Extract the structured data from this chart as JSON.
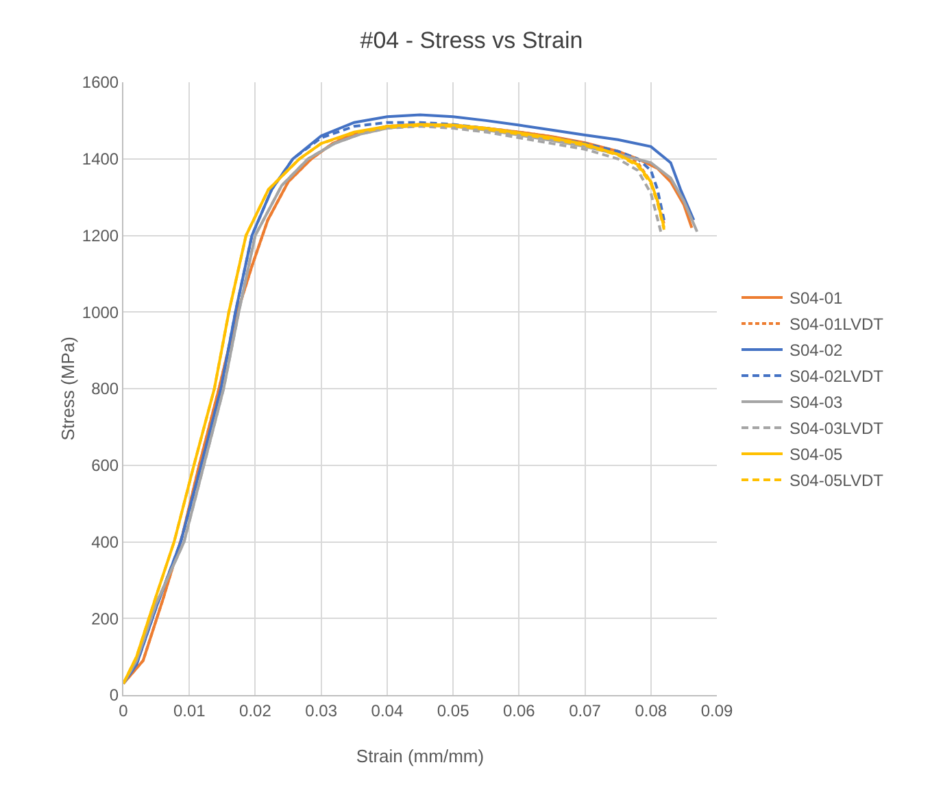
{
  "chart_data": {
    "type": "line",
    "title": "#04 - Stress vs Strain",
    "xlabel": "Strain (mm/mm)",
    "ylabel": "Stress (MPa)",
    "xlim": [
      0,
      0.09
    ],
    "xticks": [
      0,
      0.01,
      0.02,
      0.03,
      0.04,
      0.05,
      0.06,
      0.07,
      0.08,
      0.09
    ],
    "ylim": [
      0,
      1600
    ],
    "yticks": [
      0,
      200,
      400,
      600,
      800,
      1000,
      1200,
      1400,
      1600
    ],
    "grid": true,
    "legend": "right",
    "marker": "none",
    "series": [
      {
        "name": "S04-01",
        "color": "#ed7d31",
        "line_style": "solid",
        "x": [
          0,
          0.003,
          0.006,
          0.009,
          0.0115,
          0.0145,
          0.0173,
          0.0195,
          0.0219,
          0.025,
          0.0285,
          0.0317,
          0.035,
          0.04,
          0.045,
          0.05,
          0.055,
          0.06,
          0.065,
          0.07,
          0.075,
          0.078,
          0.081,
          0.083,
          0.085,
          0.0862
        ],
        "values": [
          30,
          90,
          250,
          420,
          600,
          800,
          1000,
          1120,
          1240,
          1340,
          1400,
          1440,
          1465,
          1485,
          1490,
          1488,
          1480,
          1470,
          1458,
          1442,
          1420,
          1400,
          1375,
          1340,
          1280,
          1220
        ]
      },
      {
        "name": "S04-01LVDT",
        "color": "#ed7d31",
        "line_style": "dotted",
        "x": [
          0,
          0.003,
          0.006,
          0.009,
          0.0115,
          0.0145,
          0.0173,
          0.0195,
          0.0219,
          0.025,
          0.0285,
          0.0317,
          0.035,
          0.04,
          0.045,
          0.05,
          0.055,
          0.06,
          0.065,
          0.07,
          0.075,
          0.078,
          0.08,
          0.081,
          0.082
        ],
        "values": [
          30,
          90,
          250,
          420,
          600,
          800,
          1000,
          1120,
          1240,
          1340,
          1400,
          1440,
          1465,
          1485,
          1490,
          1488,
          1480,
          1470,
          1458,
          1440,
          1415,
          1390,
          1340,
          1290,
          1230
        ]
      },
      {
        "name": "S04-02",
        "color": "#4472c4",
        "line_style": "solid",
        "x": [
          0,
          0.002,
          0.005,
          0.0087,
          0.0118,
          0.0148,
          0.017,
          0.0195,
          0.0225,
          0.0257,
          0.03,
          0.035,
          0.04,
          0.045,
          0.05,
          0.055,
          0.06,
          0.065,
          0.07,
          0.075,
          0.08,
          0.083,
          0.0845,
          0.0865
        ],
        "values": [
          30,
          80,
          230,
          400,
          600,
          800,
          1000,
          1200,
          1320,
          1400,
          1460,
          1495,
          1510,
          1515,
          1510,
          1500,
          1488,
          1475,
          1462,
          1450,
          1432,
          1390,
          1320,
          1240
        ]
      },
      {
        "name": "S04-02LVDT",
        "color": "#4472c4",
        "line_style": "dashed",
        "x": [
          0,
          0.002,
          0.005,
          0.0087,
          0.0118,
          0.0148,
          0.017,
          0.0195,
          0.0225,
          0.0257,
          0.03,
          0.035,
          0.04,
          0.045,
          0.05,
          0.055,
          0.06,
          0.065,
          0.07,
          0.075,
          0.078,
          0.08,
          0.081,
          0.082
        ],
        "values": [
          30,
          80,
          230,
          400,
          600,
          800,
          1000,
          1200,
          1320,
          1400,
          1455,
          1485,
          1495,
          1495,
          1490,
          1480,
          1468,
          1455,
          1440,
          1420,
          1400,
          1370,
          1320,
          1240
        ]
      },
      {
        "name": "S04-03",
        "color": "#a5a5a5",
        "line_style": "solid",
        "x": [
          0,
          0.002,
          0.005,
          0.0092,
          0.0122,
          0.0152,
          0.0175,
          0.02,
          0.024,
          0.028,
          0.032,
          0.036,
          0.04,
          0.045,
          0.05,
          0.055,
          0.06,
          0.065,
          0.07,
          0.075,
          0.08,
          0.083,
          0.085,
          0.087
        ],
        "values": [
          30,
          90,
          240,
          400,
          600,
          800,
          1000,
          1200,
          1330,
          1400,
          1440,
          1465,
          1480,
          1488,
          1485,
          1475,
          1462,
          1448,
          1432,
          1412,
          1390,
          1350,
          1290,
          1210
        ]
      },
      {
        "name": "S04-03LVDT",
        "color": "#a5a5a5",
        "line_style": "dashed",
        "x": [
          0,
          0.002,
          0.005,
          0.0092,
          0.0122,
          0.0152,
          0.0175,
          0.02,
          0.024,
          0.028,
          0.032,
          0.036,
          0.04,
          0.045,
          0.05,
          0.055,
          0.06,
          0.065,
          0.07,
          0.075,
          0.078,
          0.08,
          0.0815
        ],
        "values": [
          30,
          90,
          240,
          400,
          600,
          800,
          1000,
          1200,
          1330,
          1400,
          1440,
          1465,
          1480,
          1485,
          1480,
          1470,
          1455,
          1440,
          1425,
          1400,
          1370,
          1310,
          1210
        ]
      },
      {
        "name": "S04-05",
        "color": "#ffc000",
        "line_style": "solid",
        "x": [
          0,
          0.002,
          0.005,
          0.0077,
          0.0107,
          0.0138,
          0.016,
          0.0186,
          0.022,
          0.0267,
          0.03,
          0.035,
          0.04,
          0.045,
          0.05,
          0.055,
          0.06,
          0.065,
          0.07,
          0.075,
          0.078,
          0.08,
          0.081,
          0.082
        ],
        "values": [
          30,
          100,
          260,
          400,
          600,
          800,
          1000,
          1200,
          1320,
          1400,
          1440,
          1470,
          1485,
          1490,
          1488,
          1480,
          1468,
          1455,
          1438,
          1412,
          1385,
          1340,
          1290,
          1220
        ]
      },
      {
        "name": "S04-05LVDT",
        "color": "#ffc000",
        "line_style": "dashed",
        "x": [
          0,
          0.002,
          0.005,
          0.0077,
          0.0107,
          0.0138,
          0.016,
          0.0186,
          0.022,
          0.0267,
          0.03,
          0.035,
          0.04,
          0.045,
          0.05,
          0.055,
          0.06,
          0.065,
          0.07,
          0.075,
          0.078,
          0.08,
          0.081,
          0.082
        ],
        "values": [
          30,
          100,
          260,
          400,
          600,
          800,
          1000,
          1200,
          1320,
          1400,
          1440,
          1468,
          1482,
          1487,
          1485,
          1477,
          1465,
          1452,
          1435,
          1410,
          1382,
          1335,
          1285,
          1215
        ]
      }
    ]
  }
}
